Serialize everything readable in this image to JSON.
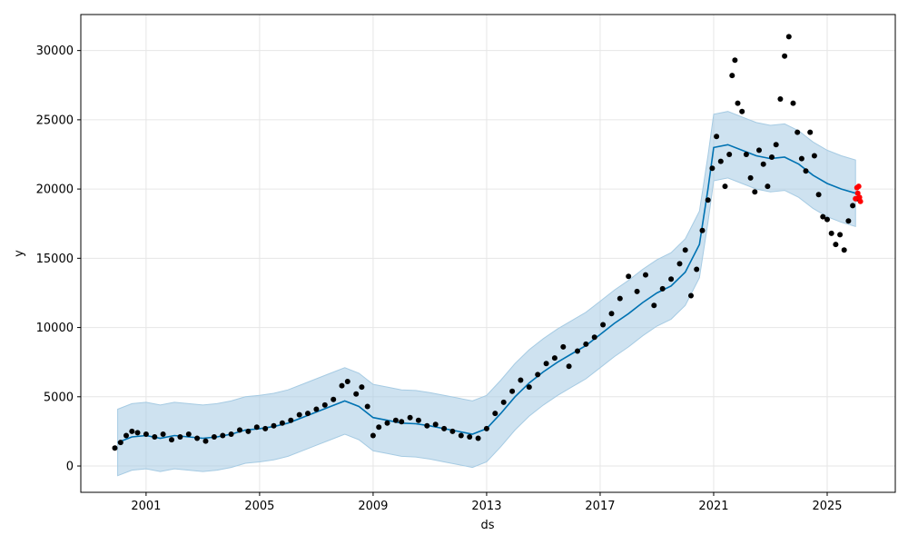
{
  "chart_data": {
    "type": "line",
    "xlabel": "ds",
    "ylabel": "y",
    "xlim": [
      1998.7,
      2027.4
    ],
    "ylim": [
      -1900,
      32600
    ],
    "x_ticks": [
      "2001",
      "2005",
      "2009",
      "2013",
      "2017",
      "2021",
      "2025"
    ],
    "y_ticks": [
      "0",
      "5000",
      "10000",
      "15000",
      "20000",
      "25000",
      "30000"
    ],
    "grid": true,
    "colors": {
      "observed": "#000000",
      "forecast": "#0072b2",
      "interval": "#a6cbe3",
      "highlight": "#ff0000"
    },
    "trend": [
      [
        2000.0,
        1700
      ],
      [
        2000.5,
        2100
      ],
      [
        2001.0,
        2200
      ],
      [
        2001.5,
        2000
      ],
      [
        2002.0,
        2200
      ],
      [
        2002.5,
        2100
      ],
      [
        2003.0,
        2000
      ],
      [
        2003.5,
        2100
      ],
      [
        2004.0,
        2300
      ],
      [
        2004.5,
        2600
      ],
      [
        2005.0,
        2700
      ],
      [
        2005.5,
        2850
      ],
      [
        2006.0,
        3100
      ],
      [
        2006.5,
        3500
      ],
      [
        2007.0,
        3900
      ],
      [
        2007.5,
        4300
      ],
      [
        2008.0,
        4700
      ],
      [
        2008.5,
        4300
      ],
      [
        2009.0,
        3500
      ],
      [
        2009.5,
        3300
      ],
      [
        2010.0,
        3100
      ],
      [
        2010.5,
        3050
      ],
      [
        2011.0,
        2900
      ],
      [
        2011.5,
        2700
      ],
      [
        2012.0,
        2500
      ],
      [
        2012.5,
        2300
      ],
      [
        2013.0,
        2700
      ],
      [
        2013.5,
        3800
      ],
      [
        2014.0,
        5000
      ],
      [
        2014.5,
        6000
      ],
      [
        2015.0,
        6800
      ],
      [
        2015.5,
        7500
      ],
      [
        2016.0,
        8100
      ],
      [
        2016.5,
        8700
      ],
      [
        2017.0,
        9500
      ],
      [
        2017.5,
        10300
      ],
      [
        2018.0,
        11000
      ],
      [
        2018.5,
        11800
      ],
      [
        2019.0,
        12500
      ],
      [
        2019.5,
        13000
      ],
      [
        2020.0,
        14000
      ],
      [
        2020.5,
        16000
      ],
      [
        2020.8,
        20000
      ],
      [
        2021.0,
        23000
      ],
      [
        2021.5,
        23200
      ],
      [
        2022.0,
        22800
      ],
      [
        2022.5,
        22400
      ],
      [
        2023.0,
        22200
      ],
      [
        2023.5,
        22300
      ],
      [
        2024.0,
        21800
      ],
      [
        2024.5,
        21000
      ],
      [
        2025.0,
        20400
      ],
      [
        2025.5,
        20000
      ],
      [
        2026.0,
        19700
      ]
    ],
    "interval_half_width": 2400,
    "observed": [
      [
        1999.9,
        1300
      ],
      [
        2000.1,
        1700
      ],
      [
        2000.3,
        2200
      ],
      [
        2000.5,
        2500
      ],
      [
        2000.7,
        2400
      ],
      [
        2001.0,
        2300
      ],
      [
        2001.3,
        2100
      ],
      [
        2001.6,
        2300
      ],
      [
        2001.9,
        1900
      ],
      [
        2002.2,
        2100
      ],
      [
        2002.5,
        2300
      ],
      [
        2002.8,
        2000
      ],
      [
        2003.1,
        1800
      ],
      [
        2003.4,
        2100
      ],
      [
        2003.7,
        2200
      ],
      [
        2004.0,
        2300
      ],
      [
        2004.3,
        2600
      ],
      [
        2004.6,
        2500
      ],
      [
        2004.9,
        2800
      ],
      [
        2005.2,
        2700
      ],
      [
        2005.5,
        2900
      ],
      [
        2005.8,
        3100
      ],
      [
        2006.1,
        3300
      ],
      [
        2006.4,
        3700
      ],
      [
        2006.7,
        3800
      ],
      [
        2007.0,
        4100
      ],
      [
        2007.3,
        4400
      ],
      [
        2007.6,
        4800
      ],
      [
        2007.9,
        5800
      ],
      [
        2008.1,
        6100
      ],
      [
        2008.4,
        5200
      ],
      [
        2008.6,
        5700
      ],
      [
        2008.8,
        4300
      ],
      [
        2009.0,
        2200
      ],
      [
        2009.2,
        2800
      ],
      [
        2009.5,
        3100
      ],
      [
        2009.8,
        3300
      ],
      [
        2010.0,
        3200
      ],
      [
        2010.3,
        3500
      ],
      [
        2010.6,
        3300
      ],
      [
        2010.9,
        2900
      ],
      [
        2011.2,
        3000
      ],
      [
        2011.5,
        2700
      ],
      [
        2011.8,
        2500
      ],
      [
        2012.1,
        2200
      ],
      [
        2012.4,
        2100
      ],
      [
        2012.7,
        2000
      ],
      [
        2013.0,
        2700
      ],
      [
        2013.3,
        3800
      ],
      [
        2013.6,
        4600
      ],
      [
        2013.9,
        5400
      ],
      [
        2014.2,
        6200
      ],
      [
        2014.5,
        5700
      ],
      [
        2014.8,
        6600
      ],
      [
        2015.1,
        7400
      ],
      [
        2015.4,
        7800
      ],
      [
        2015.7,
        8600
      ],
      [
        2015.9,
        7200
      ],
      [
        2016.2,
        8300
      ],
      [
        2016.5,
        8800
      ],
      [
        2016.8,
        9300
      ],
      [
        2017.1,
        10200
      ],
      [
        2017.4,
        11000
      ],
      [
        2017.7,
        12100
      ],
      [
        2018.0,
        13700
      ],
      [
        2018.3,
        12600
      ],
      [
        2018.6,
        13800
      ],
      [
        2018.9,
        11600
      ],
      [
        2019.2,
        12800
      ],
      [
        2019.5,
        13500
      ],
      [
        2019.8,
        14600
      ],
      [
        2020.0,
        15600
      ],
      [
        2020.2,
        12300
      ],
      [
        2020.4,
        14200
      ],
      [
        2020.6,
        17000
      ],
      [
        2020.8,
        19200
      ],
      [
        2020.95,
        21500
      ],
      [
        2021.1,
        23800
      ],
      [
        2021.25,
        22000
      ],
      [
        2021.4,
        20200
      ],
      [
        2021.55,
        22500
      ],
      [
        2021.65,
        28200
      ],
      [
        2021.75,
        29300
      ],
      [
        2021.85,
        26200
      ],
      [
        2022.0,
        25600
      ],
      [
        2022.15,
        22500
      ],
      [
        2022.3,
        20800
      ],
      [
        2022.45,
        19800
      ],
      [
        2022.6,
        22800
      ],
      [
        2022.75,
        21800
      ],
      [
        2022.9,
        20200
      ],
      [
        2023.05,
        22300
      ],
      [
        2023.2,
        23200
      ],
      [
        2023.35,
        26500
      ],
      [
        2023.5,
        29600
      ],
      [
        2023.65,
        31000
      ],
      [
        2023.8,
        26200
      ],
      [
        2023.95,
        24100
      ],
      [
        2024.1,
        22200
      ],
      [
        2024.25,
        21300
      ],
      [
        2024.4,
        24100
      ],
      [
        2024.55,
        22400
      ],
      [
        2024.7,
        19600
      ],
      [
        2024.85,
        18000
      ],
      [
        2025.0,
        17800
      ],
      [
        2025.15,
        16800
      ],
      [
        2025.3,
        16000
      ],
      [
        2025.45,
        16700
      ],
      [
        2025.6,
        15600
      ],
      [
        2025.75,
        17700
      ],
      [
        2025.9,
        18800
      ],
      [
        2026.05,
        19300
      ]
    ],
    "highlight": [
      [
        2026.0,
        19300
      ],
      [
        2026.05,
        20100
      ],
      [
        2026.08,
        19700
      ],
      [
        2026.11,
        20200
      ],
      [
        2026.14,
        19400
      ],
      [
        2026.17,
        19100
      ]
    ]
  }
}
